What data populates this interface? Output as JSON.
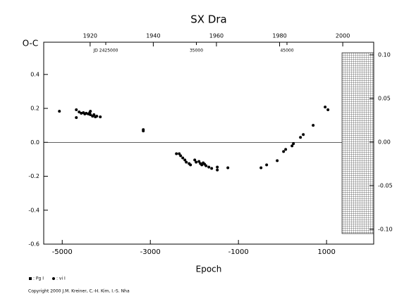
{
  "chart_data": {
    "type": "scatter",
    "title": "SX Dra",
    "xlabel": "Epoch",
    "ylabel": "O-C",
    "x": [
      -5064,
      -4680,
      -4680,
      -4616,
      -4568,
      -4520,
      -4488,
      -4456,
      -4408,
      -4376,
      -4360,
      -4360,
      -4312,
      -4280,
      -4248,
      -4216,
      -4136,
      -3160,
      -3160,
      -2408,
      -2344,
      -2312,
      -2264,
      -2216,
      -2184,
      -2120,
      -2088,
      -1992,
      -1960,
      -1896,
      -1864,
      -1832,
      -1800,
      -1768,
      -1736,
      -1672,
      -1608,
      -1480,
      -1480,
      -1240,
      -488,
      -360,
      -120,
      24,
      72,
      216,
      248,
      408,
      472,
      696,
      968,
      1032
    ],
    "series": [
      {
        "color": "#000000",
        "values": [
          0.183,
          0.192,
          0.146,
          0.179,
          0.171,
          0.175,
          0.167,
          0.171,
          0.167,
          0.175,
          0.183,
          0.163,
          0.154,
          0.163,
          0.15,
          0.154,
          0.15,
          0.075,
          0.067,
          -0.067,
          -0.067,
          -0.079,
          -0.092,
          -0.104,
          -0.117,
          -0.125,
          -0.133,
          -0.104,
          -0.117,
          -0.113,
          -0.125,
          -0.133,
          -0.121,
          -0.129,
          -0.138,
          -0.146,
          -0.154,
          -0.163,
          -0.146,
          -0.15,
          -0.15,
          -0.133,
          -0.108,
          -0.054,
          -0.042,
          -0.021,
          -0.008,
          0.029,
          0.046,
          0.1,
          0.208,
          0.192
        ]
      }
    ],
    "xlim": [
      -5420,
      2070
    ],
    "xticks": [
      -5000,
      -3000,
      -1000,
      1000
    ],
    "ylim": [
      -0.6,
      0.59
    ],
    "yticks": [
      -0.6,
      -0.4,
      -0.2,
      {
        "value": 0,
        "label": "0.0"
      },
      0.2,
      0.4
    ],
    "y2lim": [
      -0.117,
      0.1145
    ],
    "y2ticks": [
      {
        "value": -0.1,
        "label": "-0.10"
      },
      -0.05,
      {
        "value": 0,
        "label": "0.00"
      },
      0.05,
      {
        "value": 0.1,
        "label": "0.10"
      }
    ],
    "x2lim": [
      1905.3,
      2009.8
    ],
    "x2ticks": [
      1920,
      1940,
      1960,
      1980,
      2000
    ],
    "jd_lim": [
      2418152,
      2454572
    ],
    "jd_ticks": [
      {
        "value": 2425000,
        "label": "JD 2425000"
      },
      {
        "value": 2435000,
        "label": "35000"
      },
      {
        "value": 2445000,
        "label": "45000"
      }
    ],
    "legend_entries": [
      {
        "marker": "square",
        "label": ": Pg I"
      },
      {
        "marker": "circle",
        "label": ": vi I"
      }
    ],
    "footer": "Copyright 2000 J.M. Kreiner, C.-H. Kim, I.-S. Nha"
  }
}
